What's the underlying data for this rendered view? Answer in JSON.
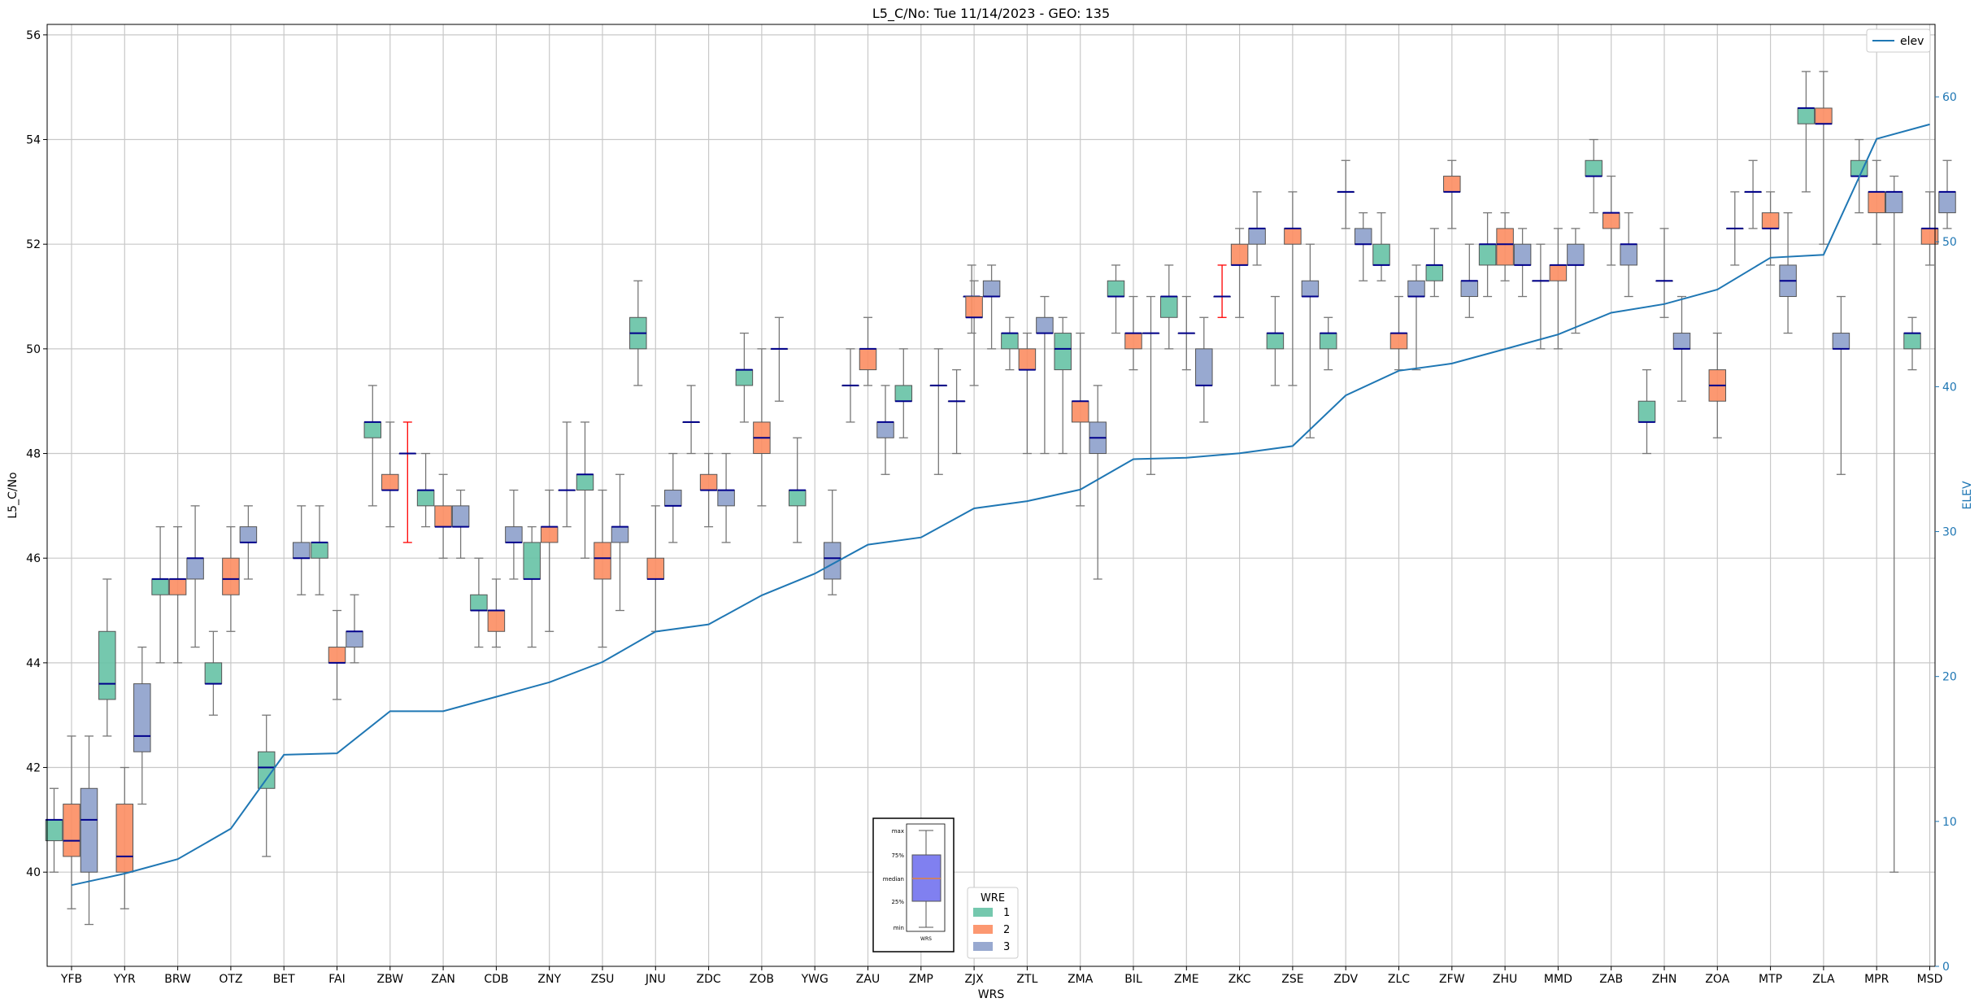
{
  "chart_data": {
    "type": "box",
    "title": "L5_C/No: Tue 11/14/2023 - GEO: 135",
    "xlabel": "WRS",
    "ylabel": "L5_C/No",
    "y2label": "ELEV",
    "ylim": [
      38.2,
      56.2
    ],
    "y2lim": [
      0,
      65
    ],
    "yticks": [
      40,
      42,
      44,
      46,
      48,
      50,
      52,
      54,
      56
    ],
    "y2ticks": [
      0,
      10,
      20,
      30,
      40,
      50,
      60
    ],
    "grid": true,
    "colors": {
      "wre1": "#66c2a5",
      "wre2": "#fc8d62",
      "wre3": "#8da0cb",
      "median": "#00008b",
      "whisker": "#777777",
      "elev": "#1f77b4",
      "outlier": "#ff0000"
    },
    "elev_legend": {
      "label": "elev",
      "placement": "top-right"
    },
    "wre_legend": {
      "title": "WRE",
      "labels": [
        "1",
        "2",
        "3"
      ],
      "placement": "bottom-center"
    },
    "key_inset": {
      "labels": [
        "max",
        "75%",
        "median",
        "25%",
        "min"
      ],
      "xtick": "WRS"
    },
    "categories": [
      "YFB",
      "YYR",
      "BRW",
      "OTZ",
      "BET",
      "FAI",
      "ZBW",
      "ZAN",
      "CDB",
      "ZNY",
      "ZSU",
      "JNU",
      "ZDC",
      "ZOB",
      "YWG",
      "ZAU",
      "ZMP",
      "ZJX",
      "ZTL",
      "ZMA",
      "BIL",
      "ZME",
      "ZKC",
      "ZSE",
      "ZDV",
      "ZLC",
      "ZFW",
      "ZHU",
      "MMD",
      "ZAB",
      "ZHN",
      "ZOA",
      "MTP",
      "ZLA",
      "MPR",
      "MSD"
    ],
    "elev": [
      5.6,
      6.4,
      7.4,
      9.5,
      14.6,
      14.7,
      17.6,
      17.6,
      18.6,
      19.6,
      21.0,
      23.1,
      23.6,
      25.6,
      27.1,
      29.1,
      29.6,
      31.6,
      32.1,
      32.9,
      35.0,
      35.1,
      35.4,
      35.9,
      39.4,
      41.1,
      41.6,
      42.6,
      43.6,
      45.1,
      45.7,
      46.7,
      48.9,
      49.1,
      57.1,
      58.1
    ],
    "boxes": [
      {
        "cat": "YFB",
        "wre": 1,
        "min": 40.0,
        "q1": 40.6,
        "median": 41.0,
        "q3": 41.0,
        "max": 41.6
      },
      {
        "cat": "YFB",
        "wre": 2,
        "min": 39.3,
        "q1": 40.3,
        "median": 40.6,
        "q3": 41.3,
        "max": 42.6
      },
      {
        "cat": "YFB",
        "wre": 3,
        "min": 39.0,
        "q1": 40.0,
        "median": 41.0,
        "q3": 41.6,
        "max": 42.6
      },
      {
        "cat": "YYR",
        "wre": 1,
        "min": 42.6,
        "q1": 43.3,
        "median": 43.6,
        "q3": 44.6,
        "max": 45.6
      },
      {
        "cat": "YYR",
        "wre": 2,
        "min": 39.3,
        "q1": 40.0,
        "median": 40.3,
        "q3": 41.3,
        "max": 42.0
      },
      {
        "cat": "YYR",
        "wre": 3,
        "min": 41.3,
        "q1": 42.3,
        "median": 42.6,
        "q3": 43.6,
        "max": 44.3
      },
      {
        "cat": "BRW",
        "wre": 1,
        "min": 44.0,
        "q1": 45.3,
        "median": 45.6,
        "q3": 45.6,
        "max": 46.6
      },
      {
        "cat": "BRW",
        "wre": 2,
        "min": 44.0,
        "q1": 45.3,
        "median": 45.6,
        "q3": 45.6,
        "max": 46.6
      },
      {
        "cat": "BRW",
        "wre": 3,
        "min": 44.3,
        "q1": 45.6,
        "median": 46.0,
        "q3": 46.0,
        "max": 47.0
      },
      {
        "cat": "OTZ",
        "wre": 1,
        "min": 43.0,
        "q1": 43.6,
        "median": 43.6,
        "q3": 44.0,
        "max": 44.6
      },
      {
        "cat": "OTZ",
        "wre": 2,
        "min": 44.6,
        "q1": 45.3,
        "median": 45.6,
        "q3": 46.0,
        "max": 46.6
      },
      {
        "cat": "OTZ",
        "wre": 3,
        "min": 45.6,
        "q1": 46.3,
        "median": 46.3,
        "q3": 46.6,
        "max": 47.0
      },
      {
        "cat": "BET",
        "wre": 1,
        "min": 40.3,
        "q1": 41.6,
        "median": 42.0,
        "q3": 42.3,
        "max": 43.0
      },
      {
        "cat": "BET",
        "wre": 3,
        "min": 45.3,
        "q1": 46.0,
        "median": 46.0,
        "q3": 46.3,
        "max": 47.0
      },
      {
        "cat": "FAI",
        "wre": 1,
        "min": 45.3,
        "q1": 46.0,
        "median": 46.3,
        "q3": 46.3,
        "max": 47.0
      },
      {
        "cat": "FAI",
        "wre": 2,
        "min": 43.3,
        "q1": 44.0,
        "median": 44.0,
        "q3": 44.3,
        "max": 45.0
      },
      {
        "cat": "FAI",
        "wre": 3,
        "min": 44.0,
        "q1": 44.3,
        "median": 44.6,
        "q3": 44.6,
        "max": 45.3
      },
      {
        "cat": "ZBW",
        "wre": 1,
        "min": 47.0,
        "q1": 48.3,
        "median": 48.6,
        "q3": 48.6,
        "max": 49.3
      },
      {
        "cat": "ZBW",
        "wre": 2,
        "min": 46.6,
        "q1": 47.3,
        "median": 47.3,
        "q3": 47.6,
        "max": 48.6
      },
      {
        "cat": "ZBW",
        "wre": 3,
        "min": 46.3,
        "q1": 48.0,
        "median": 48.0,
        "q3": 48.0,
        "max": 48.6,
        "red": true
      },
      {
        "cat": "ZAN",
        "wre": 1,
        "min": 46.6,
        "q1": 47.0,
        "median": 47.3,
        "q3": 47.3,
        "max": 48.0
      },
      {
        "cat": "ZAN",
        "wre": 2,
        "min": 46.0,
        "q1": 46.6,
        "median": 46.6,
        "q3": 47.0,
        "max": 47.6
      },
      {
        "cat": "ZAN",
        "wre": 3,
        "min": 46.0,
        "q1": 46.6,
        "median": 46.6,
        "q3": 47.0,
        "max": 47.3
      },
      {
        "cat": "CDB",
        "wre": 1,
        "min": 44.3,
        "q1": 45.0,
        "median": 45.0,
        "q3": 45.3,
        "max": 46.0
      },
      {
        "cat": "CDB",
        "wre": 2,
        "min": 44.3,
        "q1": 44.6,
        "median": 45.0,
        "q3": 45.0,
        "max": 45.6
      },
      {
        "cat": "CDB",
        "wre": 3,
        "min": 45.6,
        "q1": 46.3,
        "median": 46.3,
        "q3": 46.6,
        "max": 47.3
      },
      {
        "cat": "ZNY",
        "wre": 1,
        "min": 44.3,
        "q1": 45.6,
        "median": 45.6,
        "q3": 46.3,
        "max": 46.6
      },
      {
        "cat": "ZNY",
        "wre": 2,
        "min": 44.6,
        "q1": 46.3,
        "median": 46.6,
        "q3": 46.6,
        "max": 47.3
      },
      {
        "cat": "ZNY",
        "wre": 3,
        "min": 46.6,
        "q1": 47.3,
        "median": 47.3,
        "q3": 47.3,
        "max": 48.6
      },
      {
        "cat": "ZSU",
        "wre": 1,
        "min": 46.0,
        "q1": 47.3,
        "median": 47.6,
        "q3": 47.6,
        "max": 48.6
      },
      {
        "cat": "ZSU",
        "wre": 2,
        "min": 44.3,
        "q1": 45.6,
        "median": 46.0,
        "q3": 46.3,
        "max": 47.3
      },
      {
        "cat": "ZSU",
        "wre": 3,
        "min": 45.0,
        "q1": 46.3,
        "median": 46.6,
        "q3": 46.6,
        "max": 47.6
      },
      {
        "cat": "JNU",
        "wre": 1,
        "min": 49.3,
        "q1": 50.0,
        "median": 50.3,
        "q3": 50.6,
        "max": 51.3
      },
      {
        "cat": "JNU",
        "wre": 2,
        "min": 44.6,
        "q1": 45.6,
        "median": 45.6,
        "q3": 46.0,
        "max": 47.0
      },
      {
        "cat": "JNU",
        "wre": 3,
        "min": 46.3,
        "q1": 47.0,
        "median": 47.0,
        "q3": 47.3,
        "max": 48.0
      },
      {
        "cat": "ZDC",
        "wre": 1,
        "min": 48.0,
        "q1": 48.6,
        "median": 48.6,
        "q3": 48.6,
        "max": 49.3
      },
      {
        "cat": "ZDC",
        "wre": 2,
        "min": 46.6,
        "q1": 47.3,
        "median": 47.3,
        "q3": 47.6,
        "max": 48.0
      },
      {
        "cat": "ZDC",
        "wre": 3,
        "min": 46.3,
        "q1": 47.0,
        "median": 47.3,
        "q3": 47.3,
        "max": 48.0
      },
      {
        "cat": "ZOB",
        "wre": 1,
        "min": 48.6,
        "q1": 49.3,
        "median": 49.6,
        "q3": 49.6,
        "max": 50.3
      },
      {
        "cat": "ZOB",
        "wre": 2,
        "min": 47.0,
        "q1": 48.0,
        "median": 48.3,
        "q3": 48.6,
        "max": 50.0
      },
      {
        "cat": "ZOB",
        "wre": 3,
        "min": 49.0,
        "q1": 50.0,
        "median": 50.0,
        "q3": 50.0,
        "max": 50.6
      },
      {
        "cat": "YWG",
        "wre": 1,
        "min": 46.3,
        "q1": 47.0,
        "median": 47.3,
        "q3": 47.3,
        "max": 48.3
      },
      {
        "cat": "YWG",
        "wre": 3,
        "min": 45.3,
        "q1": 45.6,
        "median": 46.0,
        "q3": 46.3,
        "max": 47.3
      },
      {
        "cat": "ZAU",
        "wre": 1,
        "min": 48.6,
        "q1": 49.3,
        "median": 49.3,
        "q3": 49.3,
        "max": 50.0
      },
      {
        "cat": "ZAU",
        "wre": 2,
        "min": 49.3,
        "q1": 49.6,
        "median": 50.0,
        "q3": 50.0,
        "max": 50.6
      },
      {
        "cat": "ZAU",
        "wre": 3,
        "min": 47.6,
        "q1": 48.3,
        "median": 48.6,
        "q3": 48.6,
        "max": 49.3
      },
      {
        "cat": "ZMP",
        "wre": 1,
        "min": 48.3,
        "q1": 49.0,
        "median": 49.0,
        "q3": 49.3,
        "max": 50.0
      },
      {
        "cat": "ZMP",
        "wre": 3,
        "min": 47.6,
        "q1": 49.3,
        "median": 49.3,
        "q3": 49.3,
        "max": 50.0
      },
      {
        "cat": "ZMP",
        "wre": 3,
        "min": 50.3,
        "q1": 51.0,
        "median": 51.0,
        "q3": 51.0,
        "max": 51.6,
        "slot": 2.9
      },
      {
        "cat": "ZJX",
        "wre": 1,
        "min": 48.0,
        "q1": 49.0,
        "median": 49.0,
        "q3": 49.0,
        "max": 49.6
      },
      {
        "cat": "ZJX",
        "wre": 2,
        "min": 49.3,
        "q1": 50.6,
        "median": 50.6,
        "q3": 51.0,
        "max": 51.3
      },
      {
        "cat": "ZJX",
        "wre": 3,
        "min": 50.0,
        "q1": 51.0,
        "median": 51.0,
        "q3": 51.3,
        "max": 51.6
      },
      {
        "cat": "ZTL",
        "wre": 1,
        "min": 49.6,
        "q1": 50.0,
        "median": 50.3,
        "q3": 50.3,
        "max": 50.6
      },
      {
        "cat": "ZTL",
        "wre": 2,
        "min": 48.0,
        "q1": 49.6,
        "median": 49.6,
        "q3": 50.0,
        "max": 50.3
      },
      {
        "cat": "ZTL",
        "wre": 3,
        "min": 48.0,
        "q1": 50.3,
        "median": 50.3,
        "q3": 50.6,
        "max": 51.0
      },
      {
        "cat": "ZMA",
        "wre": 1,
        "min": 48.0,
        "q1": 49.6,
        "median": 50.0,
        "q3": 50.3,
        "max": 50.6
      },
      {
        "cat": "ZMA",
        "wre": 2,
        "min": 47.0,
        "q1": 48.6,
        "median": 49.0,
        "q3": 49.0,
        "max": 50.3
      },
      {
        "cat": "ZMA",
        "wre": 3,
        "min": 45.6,
        "q1": 48.0,
        "median": 48.3,
        "q3": 48.6,
        "max": 49.3
      },
      {
        "cat": "BIL",
        "wre": 1,
        "min": 50.3,
        "q1": 51.0,
        "median": 51.0,
        "q3": 51.3,
        "max": 51.6
      },
      {
        "cat": "BIL",
        "wre": 2,
        "min": 49.6,
        "q1": 50.0,
        "median": 50.3,
        "q3": 50.3,
        "max": 51.0
      },
      {
        "cat": "BIL",
        "wre": 3,
        "min": 47.6,
        "q1": 50.3,
        "median": 50.3,
        "q3": 50.3,
        "max": 51.0
      },
      {
        "cat": "ZME",
        "wre": 1,
        "min": 50.0,
        "q1": 50.6,
        "median": 51.0,
        "q3": 51.0,
        "max": 51.6
      },
      {
        "cat": "ZME",
        "wre": 2,
        "min": 49.6,
        "q1": 50.3,
        "median": 50.3,
        "q3": 50.3,
        "max": 51.0
      },
      {
        "cat": "ZME",
        "wre": 3,
        "min": 48.6,
        "q1": 49.3,
        "median": 49.3,
        "q3": 50.0,
        "max": 50.6
      },
      {
        "cat": "ZKC",
        "wre": 1,
        "min": 50.6,
        "q1": 51.0,
        "median": 51.0,
        "q3": 51.0,
        "max": 51.6,
        "red": true
      },
      {
        "cat": "ZKC",
        "wre": 2,
        "min": 50.6,
        "q1": 51.6,
        "median": 51.6,
        "q3": 52.0,
        "max": 52.3
      },
      {
        "cat": "ZKC",
        "wre": 3,
        "min": 51.6,
        "q1": 52.0,
        "median": 52.3,
        "q3": 52.3,
        "max": 53.0
      },
      {
        "cat": "ZSE",
        "wre": 2,
        "min": 49.3,
        "q1": 52.0,
        "median": 52.3,
        "q3": 52.3,
        "max": 53.0
      },
      {
        "cat": "ZSE",
        "wre": 1,
        "min": 49.3,
        "q1": 50.0,
        "median": 50.3,
        "q3": 50.3,
        "max": 51.0,
        "slot": -1.0
      },
      {
        "cat": "ZSE",
        "wre": 3,
        "min": 48.3,
        "q1": 51.0,
        "median": 51.0,
        "q3": 51.3,
        "max": 52.0
      },
      {
        "cat": "ZDV",
        "wre": 1,
        "min": 49.6,
        "q1": 50.0,
        "median": 50.3,
        "q3": 50.3,
        "max": 50.6,
        "slot": -1.0
      },
      {
        "cat": "ZDV",
        "wre": 2,
        "min": 52.3,
        "q1": 53.0,
        "median": 53.0,
        "q3": 53.0,
        "max": 53.6
      },
      {
        "cat": "ZDV",
        "wre": 3,
        "min": 51.3,
        "q1": 52.0,
        "median": 52.0,
        "q3": 52.3,
        "max": 52.6
      },
      {
        "cat": "ZLC",
        "wre": 1,
        "min": 51.3,
        "q1": 51.6,
        "median": 51.6,
        "q3": 52.0,
        "max": 52.6,
        "slot": -1.0
      },
      {
        "cat": "ZLC",
        "wre": 2,
        "min": 49.6,
        "q1": 50.0,
        "median": 50.3,
        "q3": 50.3,
        "max": 51.0
      },
      {
        "cat": "ZLC",
        "wre": 3,
        "min": 49.6,
        "q1": 51.0,
        "median": 51.0,
        "q3": 51.3,
        "max": 51.6
      },
      {
        "cat": "ZFW",
        "wre": 1,
        "min": 51.0,
        "q1": 51.3,
        "median": 51.6,
        "q3": 51.6,
        "max": 52.3
      },
      {
        "cat": "ZFW",
        "wre": 2,
        "min": 52.3,
        "q1": 53.0,
        "median": 53.0,
        "q3": 53.3,
        "max": 53.6
      },
      {
        "cat": "ZFW",
        "wre": 3,
        "min": 50.6,
        "q1": 51.0,
        "median": 51.3,
        "q3": 51.3,
        "max": 52.0
      },
      {
        "cat": "ZHU",
        "wre": 1,
        "min": 51.0,
        "q1": 51.6,
        "median": 52.0,
        "q3": 52.0,
        "max": 52.6
      },
      {
        "cat": "ZHU",
        "wre": 2,
        "min": 51.3,
        "q1": 51.6,
        "median": 52.0,
        "q3": 52.3,
        "max": 52.6
      },
      {
        "cat": "ZHU",
        "wre": 3,
        "min": 51.0,
        "q1": 51.6,
        "median": 51.6,
        "q3": 52.0,
        "max": 52.3
      },
      {
        "cat": "MMD",
        "wre": 1,
        "min": 50.0,
        "q1": 51.3,
        "median": 51.3,
        "q3": 51.3,
        "max": 52.0
      },
      {
        "cat": "MMD",
        "wre": 2,
        "min": 50.0,
        "q1": 51.3,
        "median": 51.6,
        "q3": 51.6,
        "max": 52.3
      },
      {
        "cat": "MMD",
        "wre": 3,
        "min": 50.3,
        "q1": 51.6,
        "median": 51.6,
        "q3": 52.0,
        "max": 52.3
      },
      {
        "cat": "ZAB",
        "wre": 1,
        "min": 52.6,
        "q1": 53.3,
        "median": 53.3,
        "q3": 53.6,
        "max": 54.0
      },
      {
        "cat": "ZAB",
        "wre": 2,
        "min": 51.6,
        "q1": 52.3,
        "median": 52.6,
        "q3": 52.6,
        "max": 53.3
      },
      {
        "cat": "ZAB",
        "wre": 3,
        "min": 51.0,
        "q1": 51.6,
        "median": 52.0,
        "q3": 52.0,
        "max": 52.6
      },
      {
        "cat": "ZHN",
        "wre": 1,
        "min": 48.0,
        "q1": 48.6,
        "median": 48.6,
        "q3": 49.0,
        "max": 49.6
      },
      {
        "cat": "ZHN",
        "wre": 2,
        "min": 50.6,
        "q1": 51.3,
        "median": 51.3,
        "q3": 51.3,
        "max": 52.3
      },
      {
        "cat": "ZHN",
        "wre": 3,
        "min": 49.0,
        "q1": 50.0,
        "median": 50.0,
        "q3": 50.3,
        "max": 51.0
      },
      {
        "cat": "ZOA",
        "wre": 2,
        "min": 48.3,
        "q1": 49.0,
        "median": 49.3,
        "q3": 49.6,
        "max": 50.3
      },
      {
        "cat": "ZOA",
        "wre": 3,
        "min": 51.6,
        "q1": 52.3,
        "median": 52.3,
        "q3": 52.3,
        "max": 53.0
      },
      {
        "cat": "MTP",
        "wre": 1,
        "min": 52.3,
        "q1": 53.0,
        "median": 53.0,
        "q3": 53.0,
        "max": 53.6,
        "slot": -1.0
      },
      {
        "cat": "MTP",
        "wre": 2,
        "min": 51.6,
        "q1": 52.3,
        "median": 52.3,
        "q3": 52.6,
        "max": 53.0
      },
      {
        "cat": "MTP",
        "wre": 3,
        "min": 50.3,
        "q1": 51.0,
        "median": 51.3,
        "q3": 51.6,
        "max": 52.6
      },
      {
        "cat": "ZLA",
        "wre": 1,
        "min": 53.0,
        "q1": 54.3,
        "median": 54.6,
        "q3": 54.6,
        "max": 55.3
      },
      {
        "cat": "ZLA",
        "wre": 2,
        "min": 52.0,
        "q1": 54.3,
        "median": 54.3,
        "q3": 54.6,
        "max": 55.3
      },
      {
        "cat": "ZLA",
        "wre": 3,
        "min": 47.6,
        "q1": 50.0,
        "median": 50.0,
        "q3": 50.3,
        "max": 51.0
      },
      {
        "cat": "MPR",
        "wre": 1,
        "min": 52.6,
        "q1": 53.3,
        "median": 53.3,
        "q3": 53.6,
        "max": 54.0
      },
      {
        "cat": "MPR",
        "wre": 2,
        "min": 52.0,
        "q1": 52.6,
        "median": 53.0,
        "q3": 53.0,
        "max": 53.6
      },
      {
        "cat": "MPR",
        "wre": 3,
        "min": 40.0,
        "q1": 52.6,
        "median": 53.0,
        "q3": 53.0,
        "max": 53.3
      },
      {
        "cat": "MSD",
        "wre": 1,
        "min": 49.6,
        "q1": 50.0,
        "median": 50.3,
        "q3": 50.3,
        "max": 50.6
      },
      {
        "cat": "MSD",
        "wre": 2,
        "min": 51.6,
        "q1": 52.0,
        "median": 52.3,
        "q3": 52.3,
        "max": 53.0
      },
      {
        "cat": "MSD",
        "wre": 3,
        "min": 52.3,
        "q1": 52.6,
        "median": 53.0,
        "q3": 53.0,
        "max": 53.6
      }
    ]
  }
}
